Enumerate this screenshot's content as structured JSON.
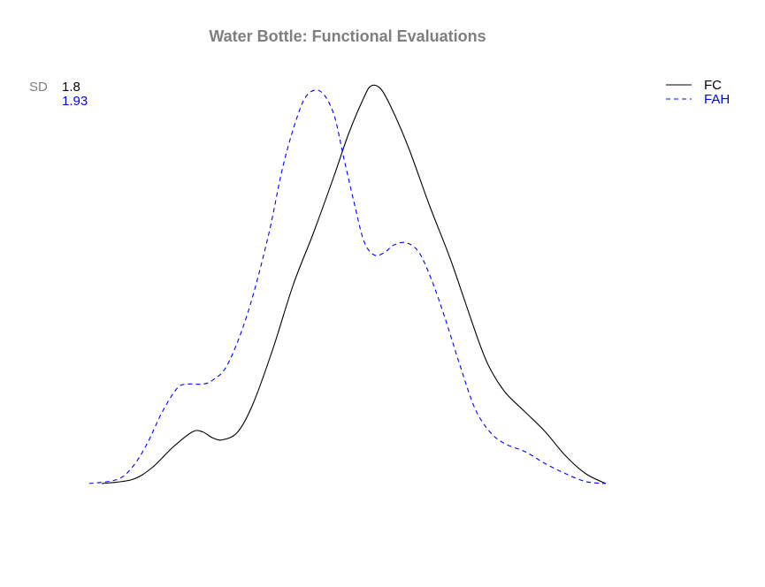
{
  "chart_data": {
    "type": "line",
    "title": "Water Bottle: Functional Evaluations",
    "xlabel": "",
    "ylabel": "",
    "axes_visible": false,
    "grid": false,
    "legend_position": "top-right",
    "sd_label": "SD",
    "x_range": [
      -0.08,
      1.08
    ],
    "y_range": [
      0,
      1
    ],
    "series": [
      {
        "name": "FC",
        "sd": "1.8",
        "color": "#000000",
        "line_style": "solid",
        "points": [
          [
            0.0,
            0.0
          ],
          [
            0.06,
            0.01
          ],
          [
            0.1,
            0.04
          ],
          [
            0.14,
            0.09
          ],
          [
            0.18,
            0.13
          ],
          [
            0.2,
            0.13
          ],
          [
            0.22,
            0.115
          ],
          [
            0.24,
            0.11
          ],
          [
            0.27,
            0.13
          ],
          [
            0.3,
            0.2
          ],
          [
            0.34,
            0.34
          ],
          [
            0.38,
            0.5
          ],
          [
            0.42,
            0.63
          ],
          [
            0.46,
            0.77
          ],
          [
            0.49,
            0.88
          ],
          [
            0.52,
            0.97
          ],
          [
            0.535,
            1.0
          ],
          [
            0.555,
            0.99
          ],
          [
            0.58,
            0.93
          ],
          [
            0.61,
            0.84
          ],
          [
            0.65,
            0.7
          ],
          [
            0.69,
            0.57
          ],
          [
            0.72,
            0.46
          ],
          [
            0.75,
            0.35
          ],
          [
            0.77,
            0.29
          ],
          [
            0.8,
            0.23
          ],
          [
            0.84,
            0.18
          ],
          [
            0.88,
            0.13
          ],
          [
            0.92,
            0.07
          ],
          [
            0.96,
            0.025
          ],
          [
            1.0,
            0.0
          ]
        ]
      },
      {
        "name": "FAH",
        "sd": "1.93",
        "color": "#0000ff",
        "line_style": "dashed",
        "points": [
          [
            -0.025,
            0.0
          ],
          [
            0.03,
            0.01
          ],
          [
            0.06,
            0.04
          ],
          [
            0.09,
            0.1
          ],
          [
            0.12,
            0.18
          ],
          [
            0.15,
            0.24
          ],
          [
            0.17,
            0.25
          ],
          [
            0.2,
            0.25
          ],
          [
            0.22,
            0.26
          ],
          [
            0.25,
            0.3
          ],
          [
            0.29,
            0.43
          ],
          [
            0.33,
            0.62
          ],
          [
            0.36,
            0.8
          ],
          [
            0.39,
            0.93
          ],
          [
            0.41,
            0.98
          ],
          [
            0.435,
            0.985
          ],
          [
            0.46,
            0.93
          ],
          [
            0.48,
            0.82
          ],
          [
            0.5,
            0.71
          ],
          [
            0.52,
            0.61
          ],
          [
            0.54,
            0.575
          ],
          [
            0.56,
            0.58
          ],
          [
            0.58,
            0.6
          ],
          [
            0.605,
            0.605
          ],
          [
            0.63,
            0.58
          ],
          [
            0.655,
            0.51
          ],
          [
            0.68,
            0.42
          ],
          [
            0.71,
            0.3
          ],
          [
            0.74,
            0.19
          ],
          [
            0.77,
            0.13
          ],
          [
            0.8,
            0.1
          ],
          [
            0.84,
            0.08
          ],
          [
            0.88,
            0.05
          ],
          [
            0.92,
            0.025
          ],
          [
            0.96,
            0.005
          ],
          [
            1.0,
            0.0
          ]
        ]
      }
    ]
  }
}
